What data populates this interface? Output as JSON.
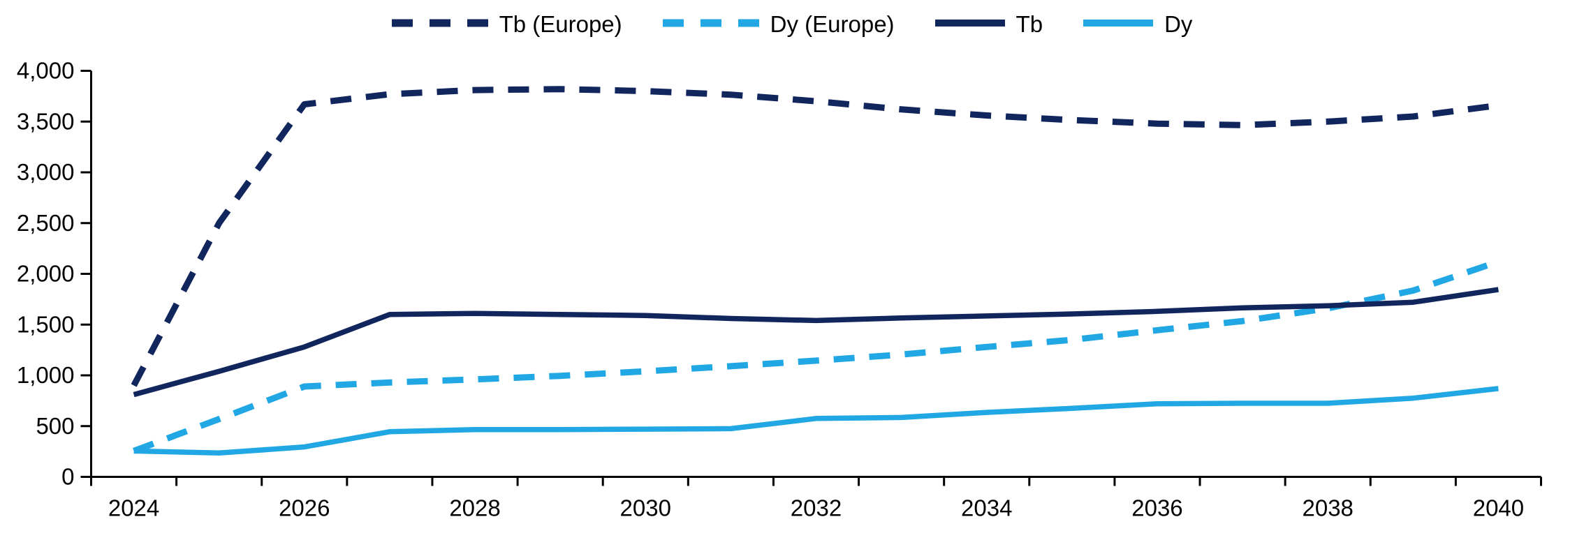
{
  "colors": {
    "navy": "#12265E",
    "light_blue": "#21A8E4",
    "axis": "#000000",
    "text": "#000000"
  },
  "legend": {
    "items": [
      {
        "label": "Tb (Europe)"
      },
      {
        "label": "Dy (Europe)"
      },
      {
        "label": "Tb"
      },
      {
        "label": "Dy"
      }
    ]
  },
  "chart_data": {
    "type": "line",
    "title": "",
    "xlabel": "",
    "ylabel": "",
    "x": [
      2024,
      2025,
      2026,
      2027,
      2028,
      2029,
      2030,
      2031,
      2032,
      2033,
      2034,
      2035,
      2036,
      2037,
      2038,
      2039,
      2040
    ],
    "x_tick_labels": [
      "2024",
      "2026",
      "2028",
      "2030",
      "2032",
      "2034",
      "2036",
      "2038",
      "2040"
    ],
    "y_ticks": [
      0,
      500,
      1000,
      1500,
      2000,
      2500,
      3000,
      3500,
      4000
    ],
    "y_tick_labels": [
      "0",
      "500",
      "1,000",
      "1,500",
      "2,000",
      "2,500",
      "3,000",
      "3,500",
      "4,000"
    ],
    "ylim": [
      0,
      4000
    ],
    "grid": false,
    "legend_position": "top",
    "series": [
      {
        "name": "Tb (Europe)",
        "color_key": "navy",
        "style": "dashed",
        "values": [
          900,
          2500,
          3670,
          3770,
          3810,
          3820,
          3800,
          3765,
          3700,
          3620,
          3560,
          3515,
          3480,
          3465,
          3500,
          3550,
          3660
        ]
      },
      {
        "name": "Dy (Europe)",
        "color_key": "light_blue",
        "style": "dashed",
        "values": [
          255,
          570,
          890,
          930,
          960,
          995,
          1040,
          1090,
          1145,
          1205,
          1280,
          1350,
          1445,
          1535,
          1660,
          1835,
          2120
        ]
      },
      {
        "name": "Tb",
        "color_key": "navy",
        "style": "solid",
        "values": [
          810,
          1040,
          1280,
          1600,
          1610,
          1600,
          1590,
          1560,
          1540,
          1565,
          1585,
          1605,
          1630,
          1665,
          1685,
          1720,
          1845
        ]
      },
      {
        "name": "Dy",
        "color_key": "light_blue",
        "style": "solid",
        "values": [
          255,
          235,
          295,
          445,
          465,
          465,
          470,
          475,
          575,
          585,
          635,
          675,
          720,
          725,
          725,
          775,
          870
        ]
      }
    ]
  }
}
